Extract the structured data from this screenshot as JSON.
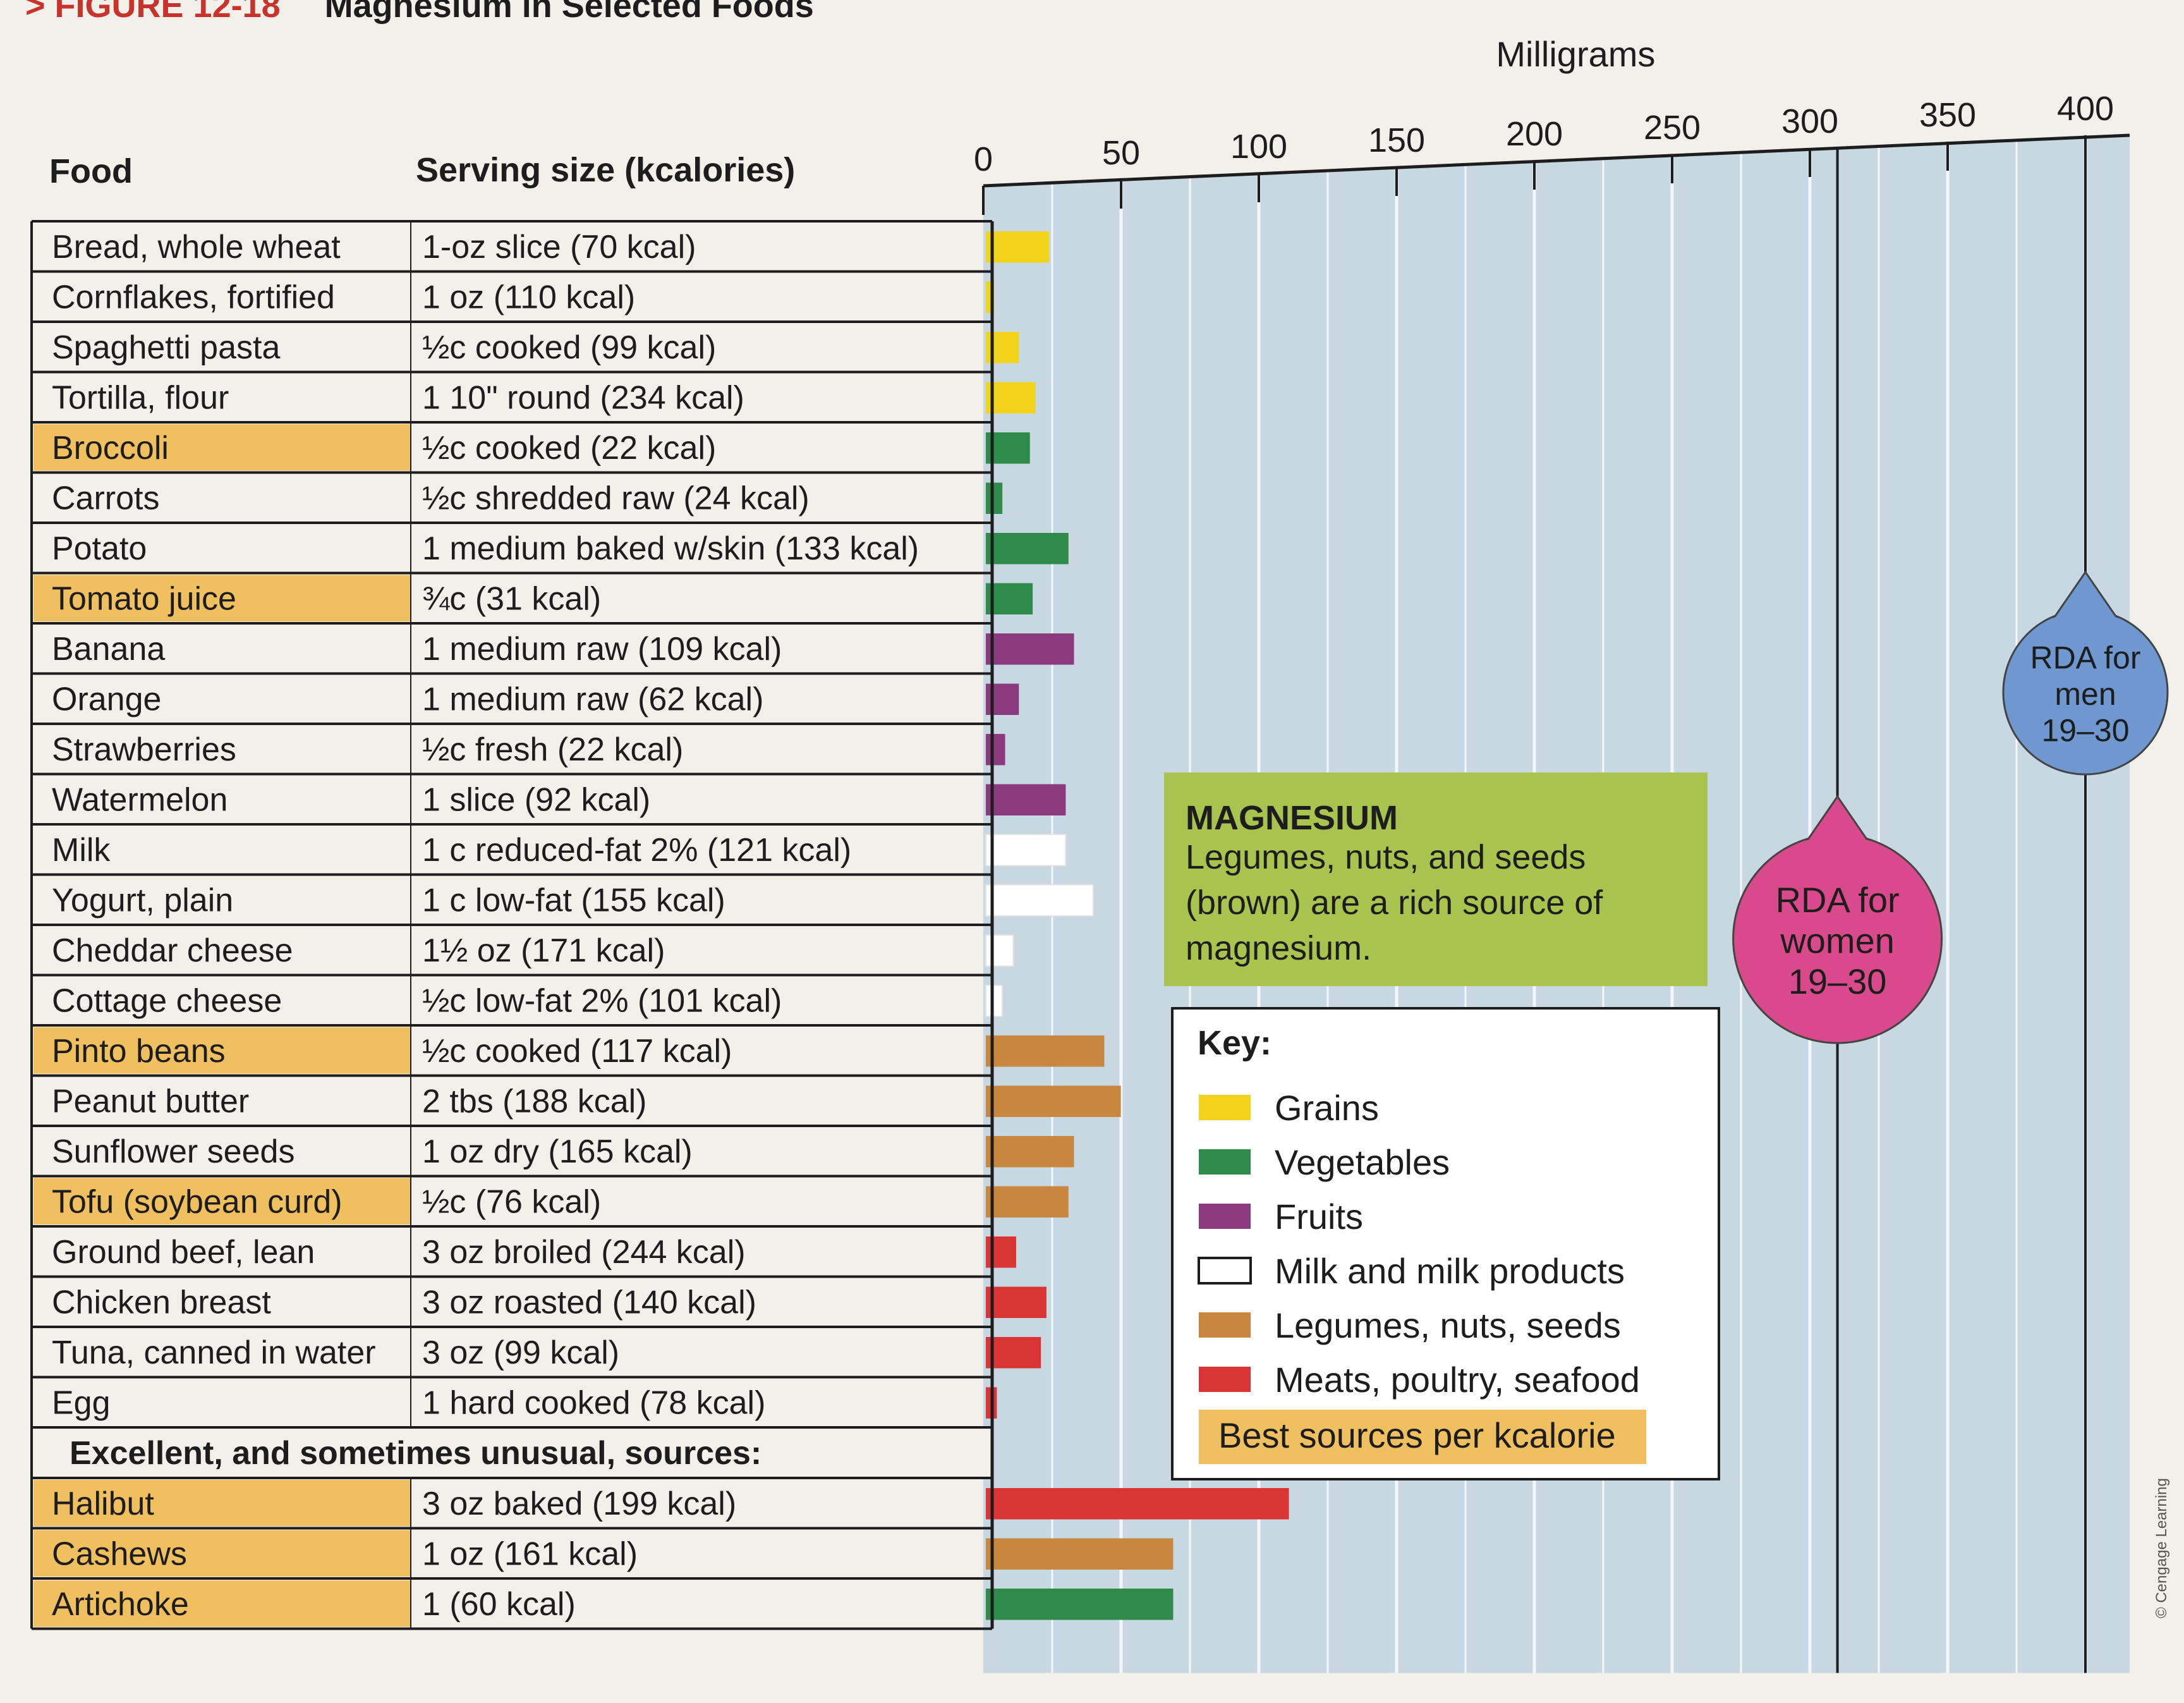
{
  "figure": {
    "number": "> FIGURE 12-18",
    "title": "Magnesium in Selected Foods"
  },
  "table": {
    "headers": {
      "food": "Food",
      "serving": "Serving size (kcalories)"
    },
    "section_label": "Excellent, and sometimes unusual, sources:"
  },
  "chart_data": {
    "type": "bar",
    "orientation": "horizontal",
    "xlabel": "Milligrams",
    "xlim": [
      0,
      400
    ],
    "x_ticks": [
      "0",
      "50",
      "100",
      "150",
      "200",
      "250",
      "300",
      "350",
      "400"
    ],
    "grid": true,
    "rows": [
      {
        "food": "Bread, whole wheat",
        "serving": "1-oz slice (70 kcal)",
        "value": 23,
        "group": "grains",
        "best": false
      },
      {
        "food": "Cornflakes, fortified",
        "serving": "1 oz (110 kcal)",
        "value": 3,
        "group": "grains",
        "best": false
      },
      {
        "food": "Spaghetti pasta",
        "serving": "½c cooked (99 kcal)",
        "value": 12,
        "group": "grains",
        "best": false
      },
      {
        "food": "Tortilla, flour",
        "serving": "1 10\" round (234 kcal)",
        "value": 18,
        "group": "grains",
        "best": false
      },
      {
        "food": "Broccoli",
        "serving": "½c cooked (22 kcal)",
        "value": 16,
        "group": "vegetables",
        "best": true
      },
      {
        "food": "Carrots",
        "serving": "½c shredded raw (24 kcal)",
        "value": 6,
        "group": "vegetables",
        "best": false
      },
      {
        "food": "Potato",
        "serving": "1 medium baked w/skin (133 kcal)",
        "value": 30,
        "group": "vegetables",
        "best": false
      },
      {
        "food": "Tomato juice",
        "serving": "¾c (31 kcal)",
        "value": 17,
        "group": "vegetables",
        "best": true
      },
      {
        "food": "Banana",
        "serving": "1 medium raw (109 kcal)",
        "value": 32,
        "group": "fruits",
        "best": false
      },
      {
        "food": "Orange",
        "serving": "1 medium raw (62 kcal)",
        "value": 12,
        "group": "fruits",
        "best": false
      },
      {
        "food": "Strawberries",
        "serving": "½c fresh (22 kcal)",
        "value": 7,
        "group": "fruits",
        "best": false
      },
      {
        "food": "Watermelon",
        "serving": "1 slice (92 kcal)",
        "value": 29,
        "group": "fruits",
        "best": false
      },
      {
        "food": "Milk",
        "serving": "1 c reduced-fat 2% (121 kcal)",
        "value": 29,
        "group": "milk",
        "best": false
      },
      {
        "food": "Yogurt, plain",
        "serving": "1 c low-fat (155 kcal)",
        "value": 39,
        "group": "milk",
        "best": false
      },
      {
        "food": "Cheddar cheese",
        "serving": "1½ oz (171 kcal)",
        "value": 10,
        "group": "milk",
        "best": false
      },
      {
        "food": "Cottage cheese",
        "serving": "½c low-fat 2% (101 kcal)",
        "value": 6,
        "group": "milk",
        "best": false
      },
      {
        "food": "Pinto beans",
        "serving": "½c cooked (117 kcal)",
        "value": 43,
        "group": "legumes",
        "best": true
      },
      {
        "food": "Peanut butter",
        "serving": "2 tbs (188 kcal)",
        "value": 49,
        "group": "legumes",
        "best": false
      },
      {
        "food": "Sunflower seeds",
        "serving": "1 oz dry (165 kcal)",
        "value": 32,
        "group": "legumes",
        "best": false
      },
      {
        "food": "Tofu (soybean curd)",
        "serving": "½c (76 kcal)",
        "value": 30,
        "group": "legumes",
        "best": true
      },
      {
        "food": "Ground beef, lean",
        "serving": "3 oz broiled (244 kcal)",
        "value": 11,
        "group": "meats",
        "best": false
      },
      {
        "food": "Chicken breast",
        "serving": "3 oz roasted (140 kcal)",
        "value": 22,
        "group": "meats",
        "best": false
      },
      {
        "food": "Tuna, canned in water",
        "serving": "3 oz (99 kcal)",
        "value": 20,
        "group": "meats",
        "best": false
      },
      {
        "food": "Egg",
        "serving": "1 hard cooked (78 kcal)",
        "value": 4,
        "group": "meats",
        "best": false
      },
      {
        "food": "Halibut",
        "serving": "3 oz baked (199 kcal)",
        "value": 110,
        "group": "meats",
        "best": true,
        "excellent": true
      },
      {
        "food": "Cashews",
        "serving": "1 oz (161 kcal)",
        "value": 68,
        "group": "legumes",
        "best": true,
        "excellent": true
      },
      {
        "food": "Artichoke",
        "serving": "1 (60 kcal)",
        "value": 68,
        "group": "vegetables",
        "best": true,
        "excellent": true
      }
    ],
    "reference_lines": [
      {
        "label": [
          "RDA for",
          "women",
          "19–30"
        ],
        "value": 310,
        "color": "#d84a8c"
      },
      {
        "label": [
          "RDA for",
          "men",
          "19–30"
        ],
        "value": 400,
        "color": "#6f98d0"
      }
    ]
  },
  "info_box": {
    "title": "MAGNESIUM",
    "lines": [
      "Legumes, nuts, and seeds",
      "(brown) are a rich source of",
      "magnesium."
    ],
    "color": "#a8c44e"
  },
  "legend": {
    "title": "Key:",
    "items": [
      {
        "key": "grains",
        "label": "Grains",
        "color": "#f2d21b"
      },
      {
        "key": "vegetables",
        "label": "Vegetables",
        "color": "#2e8b4a"
      },
      {
        "key": "fruits",
        "label": "Fruits",
        "color": "#8b3a7e"
      },
      {
        "key": "milk",
        "label": "Milk and milk products",
        "color": "#ffffff"
      },
      {
        "key": "legumes",
        "label": "Legumes, nuts, seeds",
        "color": "#c9863e"
      },
      {
        "key": "meats",
        "label": "Meats, poultry, seafood",
        "color": "#d93535"
      }
    ],
    "best_label": "Best sources per kcalorie",
    "best_color": "#f0c060"
  },
  "credit": "© Cengage Learning"
}
